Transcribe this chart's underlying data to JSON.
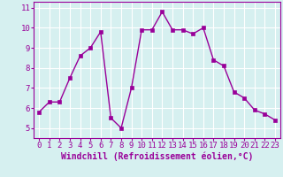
{
  "x": [
    0,
    1,
    2,
    3,
    4,
    5,
    6,
    7,
    8,
    9,
    10,
    11,
    12,
    13,
    14,
    15,
    16,
    17,
    18,
    19,
    20,
    21,
    22,
    23
  ],
  "y": [
    5.8,
    6.3,
    6.3,
    7.5,
    8.6,
    9.0,
    9.8,
    5.5,
    5.0,
    7.0,
    9.9,
    9.9,
    10.8,
    9.9,
    9.9,
    9.7,
    10.0,
    8.4,
    8.1,
    6.8,
    6.5,
    5.9,
    5.7,
    5.4
  ],
  "line_color": "#990099",
  "marker": "s",
  "marker_size": 2.5,
  "line_width": 1.0,
  "bg_color": "#d6f0f0",
  "grid_color": "#ffffff",
  "xlabel": "Windchill (Refroidissement éolien,°C)",
  "xlabel_color": "#990099",
  "xlabel_fontsize": 7,
  "tick_color": "#990099",
  "tick_fontsize": 6.5,
  "ylim": [
    4.5,
    11.3
  ],
  "xlim": [
    -0.5,
    23.5
  ],
  "yticks": [
    5,
    6,
    7,
    8,
    9,
    10,
    11
  ],
  "xticks": [
    0,
    1,
    2,
    3,
    4,
    5,
    6,
    7,
    8,
    9,
    10,
    11,
    12,
    13,
    14,
    15,
    16,
    17,
    18,
    19,
    20,
    21,
    22,
    23
  ],
  "spine_color": "#990099"
}
